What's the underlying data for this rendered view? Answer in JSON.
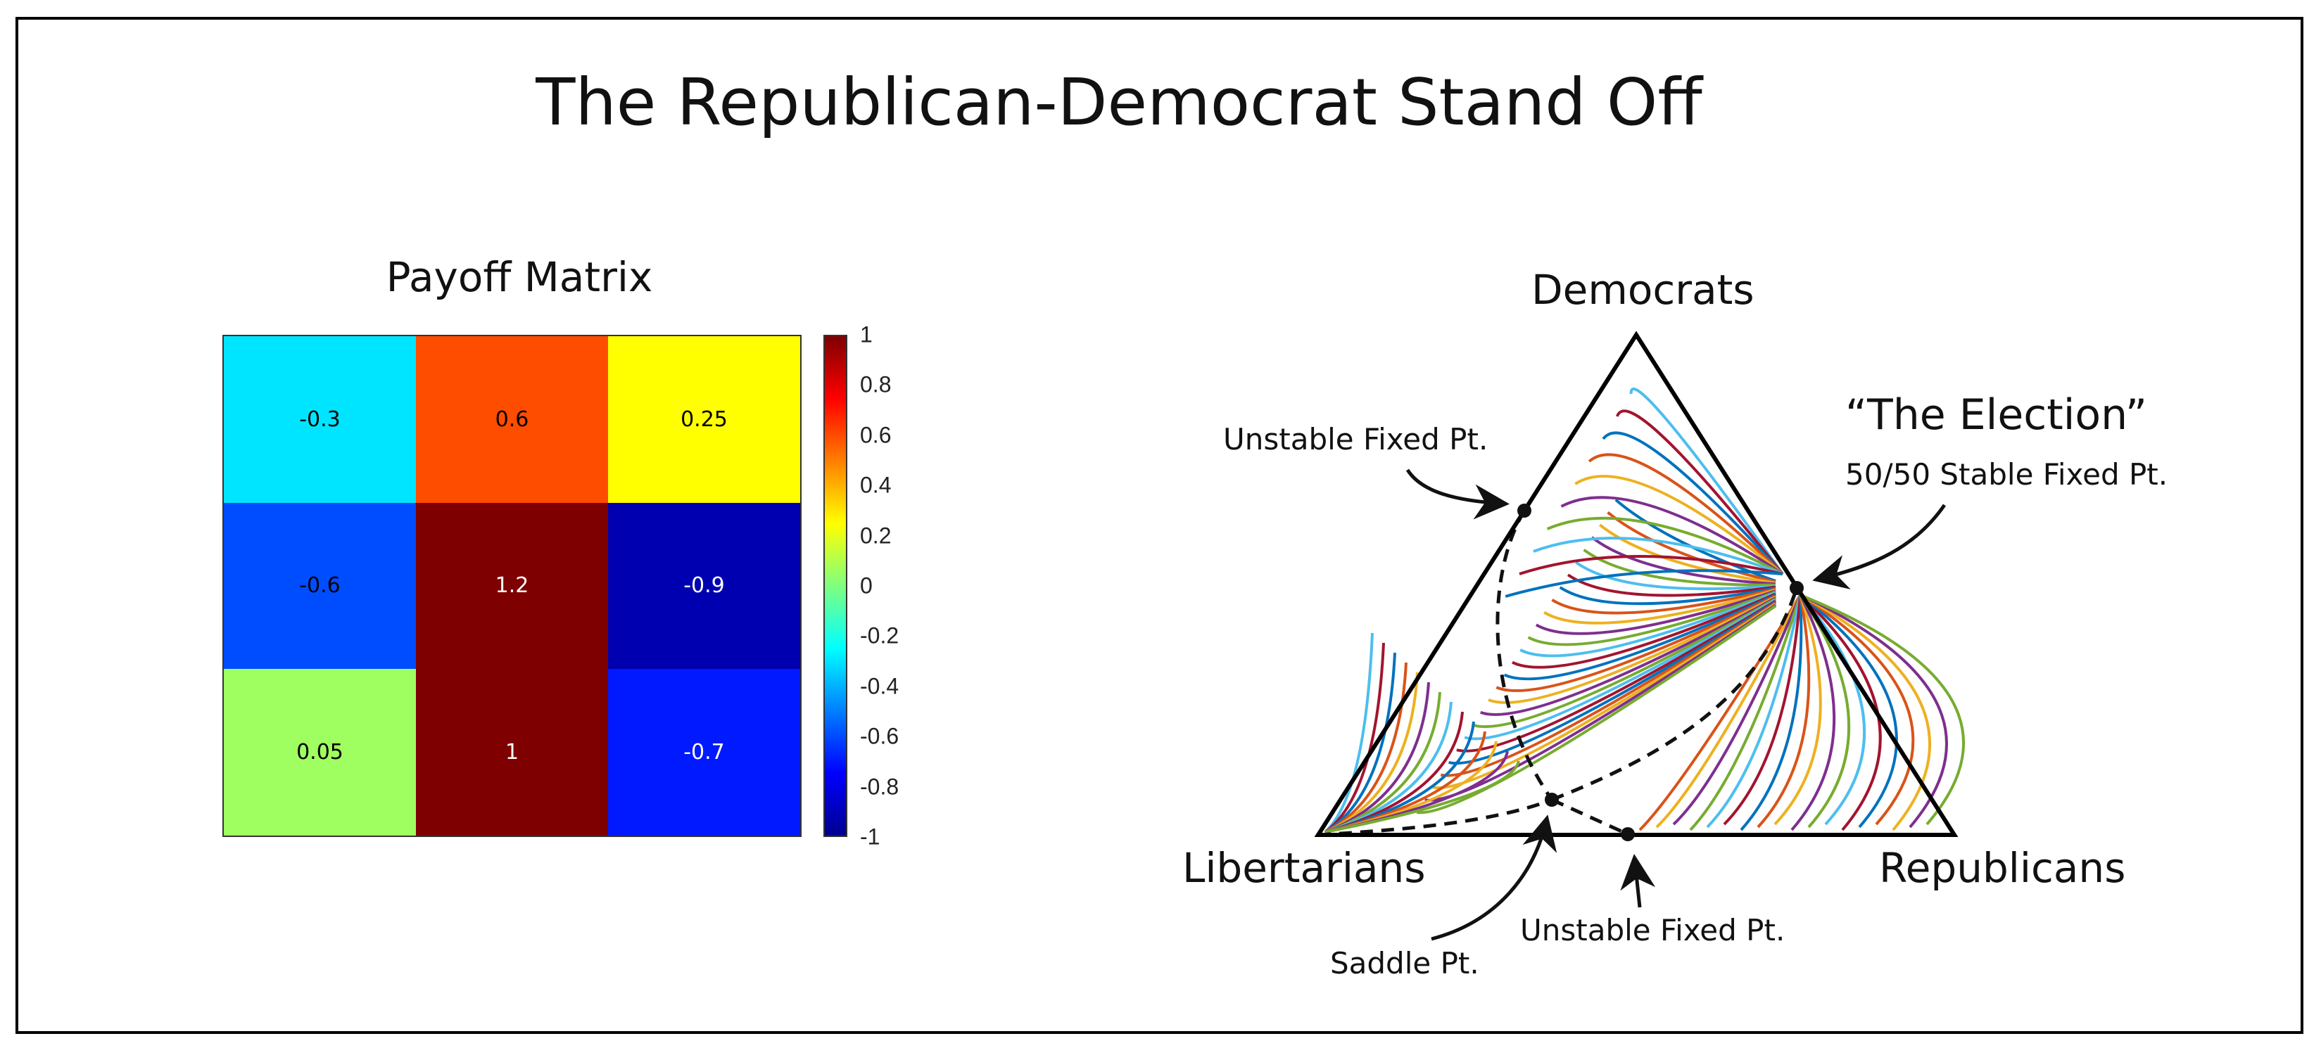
{
  "figure": {
    "title": "The  Republican-Democrat  Stand Off"
  },
  "payoff_matrix": {
    "title": "Payoff Matrix",
    "rows": [
      [
        {
          "value": "-0.3",
          "color": "#00e5ff",
          "text_color": "#000000"
        },
        {
          "value": "0.6",
          "color": "#ff4d00",
          "text_color": "#000000"
        },
        {
          "value": "0.25",
          "color": "#ffff00",
          "text_color": "#000000"
        }
      ],
      [
        {
          "value": "-0.6",
          "color": "#004dff",
          "text_color": "#000000"
        },
        {
          "value": "1.2",
          "color": "#7f0000",
          "text_color": "#ffffff"
        },
        {
          "value": "-0.9",
          "color": "#0000b0",
          "text_color": "#ffffff"
        }
      ],
      [
        {
          "value": "0.05",
          "color": "#a0ff60",
          "text_color": "#000000"
        },
        {
          "value": "1",
          "color": "#7f0000",
          "text_color": "#ffffff"
        },
        {
          "value": "-0.7",
          "color": "#0019ff",
          "text_color": "#ffffff"
        }
      ]
    ],
    "colorbar": {
      "colormap": "jet",
      "min": -1,
      "max": 1,
      "ticks": [
        "1",
        "0.8",
        "0.6",
        "0.4",
        "0.2",
        "0",
        "-0.2",
        "-0.4",
        "-0.6",
        "-0.8",
        "-1"
      ]
    }
  },
  "simplex": {
    "vertices": {
      "top": "Democrats",
      "left": "Libertarians",
      "right": "Republicans"
    },
    "annotations": {
      "election_title": "“The Election”",
      "election_subtitle": "50/50 Stable Fixed Pt.",
      "unstable_left": "Unstable Fixed Pt.",
      "unstable_bottom": "Unstable Fixed Pt.",
      "saddle": "Saddle Pt."
    },
    "trajectory_colors": [
      "#0072bd",
      "#d95319",
      "#edb120",
      "#7e2f8e",
      "#77ac30",
      "#4dbeee",
      "#a2142f"
    ]
  },
  "chart_data": [
    {
      "type": "heatmap",
      "title": "Payoff Matrix",
      "rows": 3,
      "cols": 3,
      "values": [
        [
          -0.3,
          0.6,
          0.25
        ],
        [
          -0.6,
          1.2,
          -0.9
        ],
        [
          0.05,
          1,
          -0.7
        ]
      ],
      "colorbar": {
        "range": [
          -1,
          1
        ],
        "ticks": [
          -1,
          -0.8,
          -0.6,
          -0.4,
          -0.2,
          0,
          0.2,
          0.4,
          0.6,
          0.8,
          1
        ]
      }
    },
    {
      "type": "ternary-phase-portrait",
      "vertices": [
        "Democrats",
        "Libertarians",
        "Republicans"
      ],
      "fixed_points": [
        {
          "label": "Unstable Fixed Pt.",
          "location": "Democrats-Libertarians edge"
        },
        {
          "label": "50/50 Stable Fixed Pt.",
          "location": "Democrats-Republicans edge midpoint"
        },
        {
          "label": "Saddle Pt.",
          "location": "interior near Libertarians base"
        },
        {
          "label": "Unstable Fixed Pt.",
          "location": "Libertarians-Republicans edge"
        }
      ]
    }
  ]
}
